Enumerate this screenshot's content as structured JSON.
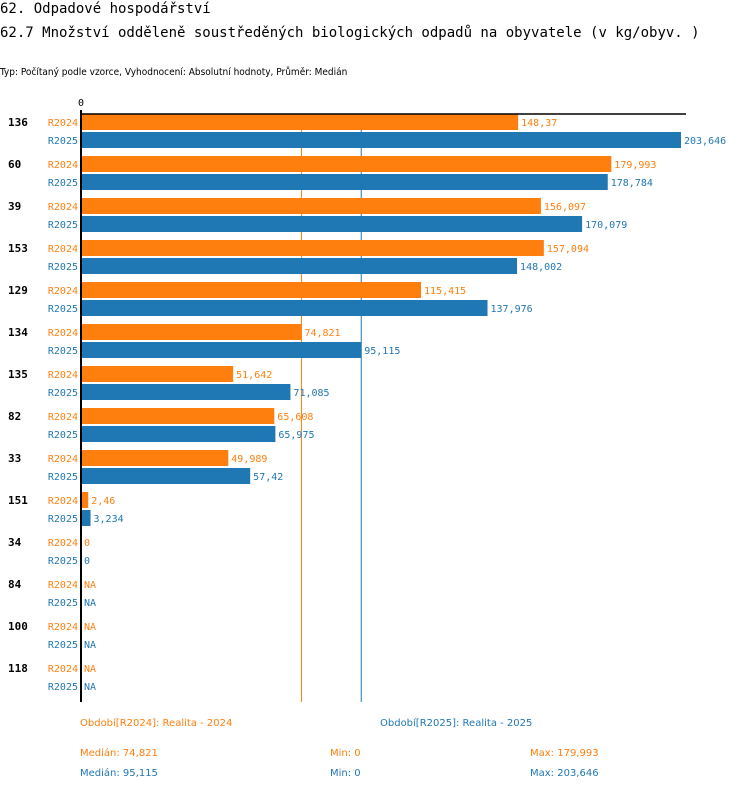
{
  "header": {
    "section_title": "62. Odpadové hospodářství",
    "indicator_title": "62.7 Množství odděleně soustředěných biologických odpadů na obyvatele (v kg/obyv. )",
    "subtitle": "Typ: Počítaný podle vzorce, Vyhodnocení: Absolutní hodnoty, Průměr: Medián"
  },
  "colors": {
    "R2024": "#ff7f0e",
    "R2025": "#1f77b4",
    "axis": "#000000"
  },
  "chart_data": {
    "type": "bar",
    "orientation": "horizontal",
    "axis_zero_label": "0",
    "xlim": [
      0,
      203.646
    ],
    "series_names": [
      "R2024",
      "R2025"
    ],
    "categories": [
      "136",
      "60",
      "39",
      "153",
      "129",
      "134",
      "135",
      "82",
      "33",
      "151",
      "34",
      "84",
      "100",
      "118"
    ],
    "series": [
      {
        "name": "R2024",
        "values": [
          148.37,
          179.993,
          156.097,
          157.094,
          115.415,
          74.821,
          51.642,
          65.608,
          49.989,
          2.46,
          0,
          null,
          null,
          null
        ],
        "labels": [
          "148,37",
          "179,993",
          "156,097",
          "157,094",
          "115,415",
          "74,821",
          "51,642",
          "65,608",
          "49,989",
          "2,46",
          "0",
          "NA",
          "NA",
          "NA"
        ]
      },
      {
        "name": "R2025",
        "values": [
          203.646,
          178.784,
          170.079,
          148.002,
          137.976,
          95.115,
          71.085,
          65.975,
          57.42,
          3.234,
          0,
          null,
          null,
          null
        ],
        "labels": [
          "203,646",
          "178,784",
          "170,079",
          "148,002",
          "137,976",
          "95,115",
          "71,085",
          "65,975",
          "57,42",
          "3,234",
          "0",
          "NA",
          "NA",
          "NA"
        ]
      }
    ],
    "reference_lines": [
      {
        "series": "R2024",
        "type": "median",
        "value": 74.821
      },
      {
        "series": "R2025",
        "type": "median",
        "value": 95.115
      }
    ]
  },
  "legend": {
    "R2024": "Období[R2024]: Realita - 2024",
    "R2025": "Období[R2025]: Realita - 2025"
  },
  "stats": {
    "R2024": {
      "median": "Medián: 74,821",
      "min": "Min: 0",
      "max": "Max: 179,993"
    },
    "R2025": {
      "median": "Medián: 95,115",
      "min": "Min: 0",
      "max": "Max: 203,646"
    }
  }
}
